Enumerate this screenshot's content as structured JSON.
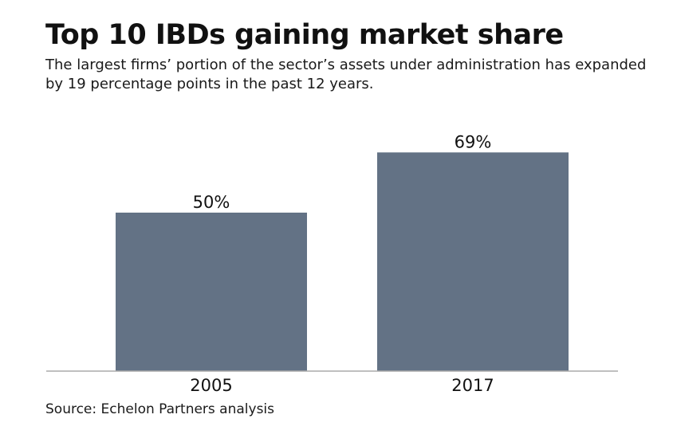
{
  "header": {
    "title": "Top 10 IBDs gaining market share",
    "subtitle": "The largest firms’ portion of the sector’s assets under administration has expanded by 19 percentage points in the past 12 years."
  },
  "footer": {
    "source": "Source: Echelon Partners analysis"
  },
  "colors": {
    "bar": "#637285",
    "axis": "#aaaaaa"
  },
  "chart_data": {
    "type": "bar",
    "title": "Top 10 IBDs gaining market share",
    "subtitle": "The largest firms’ portion of the sector’s assets under administration has expanded by 19 percentage points in the past 12 years.",
    "categories": [
      "2005",
      "2017"
    ],
    "values": [
      50,
      69
    ],
    "value_labels": [
      "50%",
      "69%"
    ],
    "xlabel": "",
    "ylabel": "",
    "unit": "%",
    "ylim": [
      0,
      69
    ],
    "grid": false,
    "legend": "none"
  }
}
